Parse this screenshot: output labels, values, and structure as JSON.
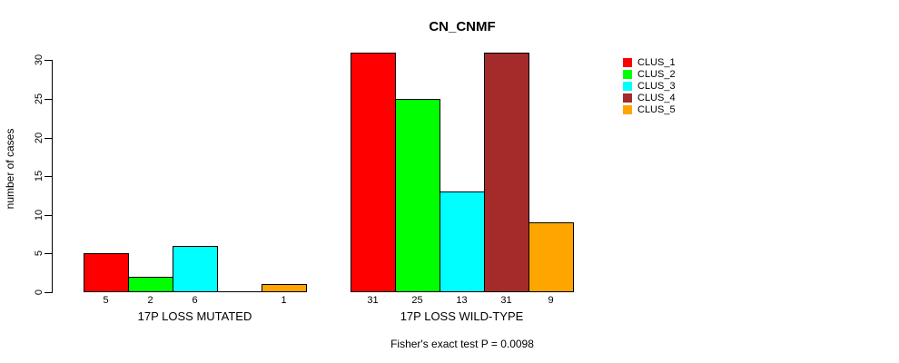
{
  "title": "CN_CNMF",
  "footer": "Fisher's exact test P = 0.0098",
  "chart_data": {
    "type": "bar",
    "title": "CN_CNMF",
    "xlabel": "",
    "ylabel": "number of cases",
    "yticks": [
      0,
      5,
      10,
      15,
      20,
      25,
      30
    ],
    "ylim": [
      0,
      31
    ],
    "grid": false,
    "legend_position": "right",
    "bar_value_labels_shown": true,
    "categories": [
      "17P LOSS MUTATED",
      "17P LOSS WILD-TYPE"
    ],
    "series": [
      {
        "name": "CLUS_1",
        "color": "#FF0000",
        "values": [
          5,
          31
        ]
      },
      {
        "name": "CLUS_2",
        "color": "#00FF00",
        "values": [
          2,
          25
        ]
      },
      {
        "name": "CLUS_3",
        "color": "#00FFFF",
        "values": [
          6,
          13
        ]
      },
      {
        "name": "CLUS_4",
        "color": "#A52A2A",
        "values": [
          0,
          31
        ]
      },
      {
        "name": "CLUS_5",
        "color": "#FFA500",
        "values": [
          1,
          9
        ]
      }
    ],
    "annotation": "Fisher's exact test P = 0.0098"
  }
}
